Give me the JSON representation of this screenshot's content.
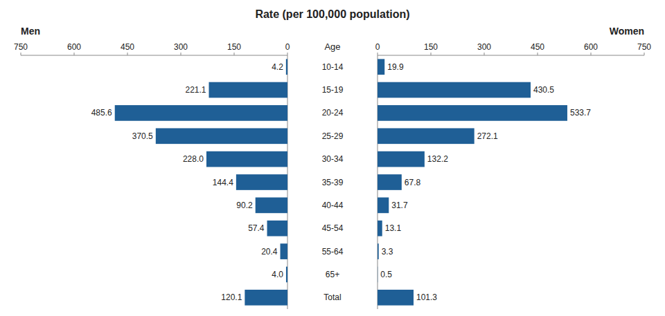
{
  "chart_data": {
    "type": "bar",
    "orientation": "horizontal",
    "title": "Rate (per 100,000 population)",
    "ylabel": "Age",
    "categories": [
      "10-14",
      "15-19",
      "20-24",
      "25-29",
      "30-34",
      "35-39",
      "40-44",
      "45-54",
      "55-64",
      "65+",
      "Total"
    ],
    "series": [
      {
        "name": "Men",
        "values": [
          4.2,
          221.1,
          485.6,
          370.5,
          228.0,
          144.4,
          90.2,
          57.4,
          20.4,
          4.0,
          120.1
        ],
        "value_labels": [
          "4.2",
          "221.1",
          "485.6",
          "370.5",
          "228.0",
          "144.4",
          "90.2",
          "57.4",
          "20.4",
          "4.0",
          "120.1"
        ]
      },
      {
        "name": "Women",
        "values": [
          19.9,
          430.5,
          533.7,
          272.1,
          132.2,
          67.8,
          31.7,
          13.1,
          3.3,
          0.5,
          101.3
        ]
      }
    ],
    "color": "#1f5f96",
    "xlim": [
      0,
      750
    ],
    "xticks": [
      0,
      150,
      300,
      450,
      600,
      750
    ],
    "data_labels": true,
    "grid": false
  }
}
